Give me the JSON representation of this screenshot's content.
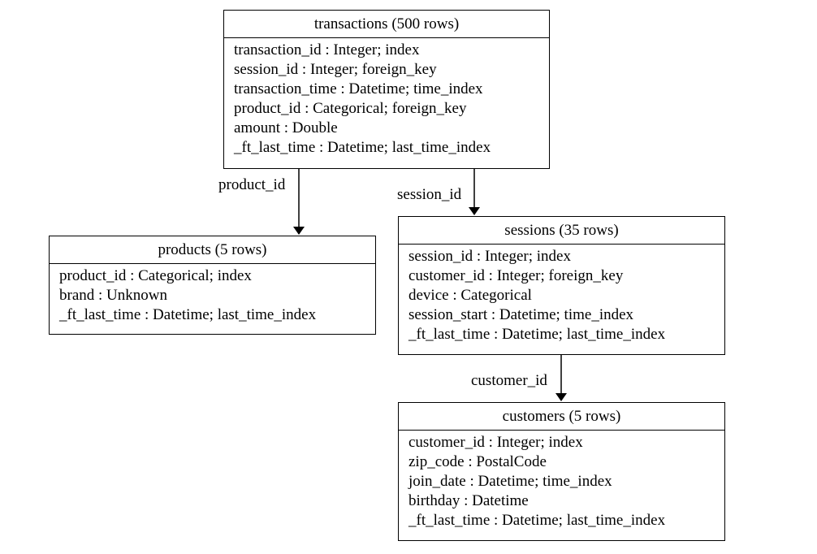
{
  "entities": {
    "transactions": {
      "title": "transactions (500 rows)",
      "fields": [
        "transaction_id : Integer; index",
        "session_id : Integer; foreign_key",
        "transaction_time : Datetime; time_index",
        "product_id : Categorical; foreign_key",
        "amount : Double",
        "_ft_last_time : Datetime; last_time_index"
      ]
    },
    "products": {
      "title": "products (5 rows)",
      "fields": [
        "product_id : Categorical; index",
        "brand : Unknown",
        "_ft_last_time : Datetime; last_time_index"
      ]
    },
    "sessions": {
      "title": "sessions (35 rows)",
      "fields": [
        "session_id : Integer; index",
        "customer_id : Integer; foreign_key",
        "device : Categorical",
        "session_start : Datetime; time_index",
        "_ft_last_time : Datetime; last_time_index"
      ]
    },
    "customers": {
      "title": "customers (5 rows)",
      "fields": [
        "customer_id : Integer; index",
        "zip_code : PostalCode",
        "join_date : Datetime; time_index",
        "birthday : Datetime",
        "_ft_last_time : Datetime; last_time_index"
      ]
    }
  },
  "relationships": [
    {
      "from": "transactions",
      "to": "products",
      "label": "product_id"
    },
    {
      "from": "transactions",
      "to": "sessions",
      "label": "session_id"
    },
    {
      "from": "sessions",
      "to": "customers",
      "label": "customer_id"
    }
  ]
}
